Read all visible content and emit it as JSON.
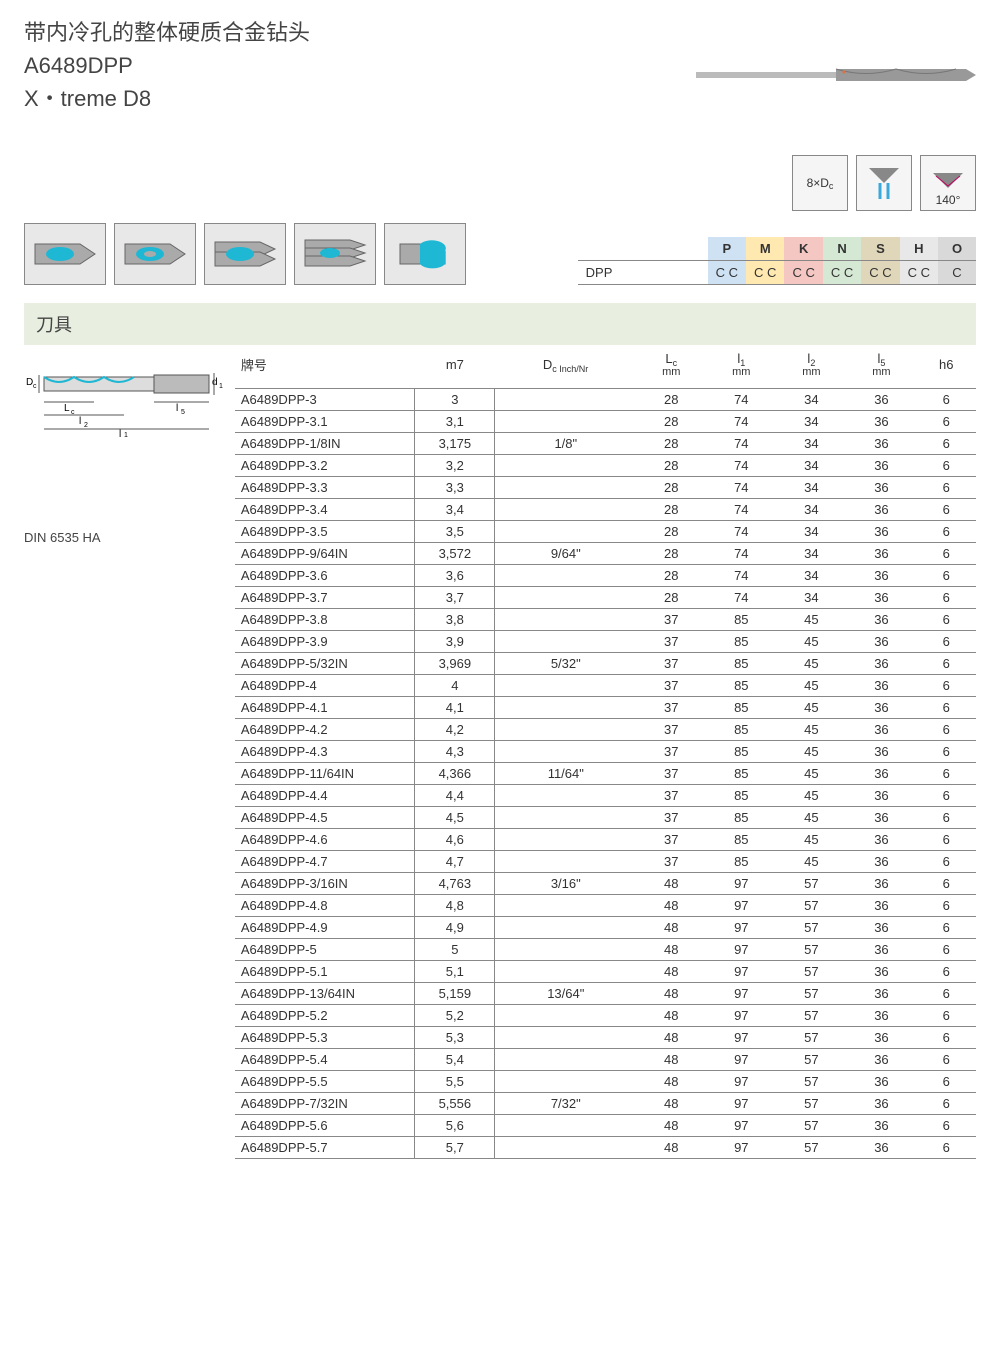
{
  "header": {
    "title_cn": "带内冷孔的整体硬质合金钻头",
    "model": "A6489DPP",
    "series": "X・treme D8"
  },
  "spec_icons": {
    "depth": "8×D",
    "depth_sub": "c",
    "angle": "140°"
  },
  "material_table": {
    "row_label": "DPP",
    "columns": [
      "P",
      "M",
      "K",
      "N",
      "S",
      "H",
      "O"
    ],
    "values": [
      "C C",
      "C C",
      "C C",
      "C C",
      "C C",
      "C C",
      "C"
    ],
    "colors": [
      "#cfe2f3",
      "#ffe9b0",
      "#f4c7c3",
      "#d5e8d4",
      "#e0d6b9",
      "#e8e8e8",
      "#d9d9d9"
    ]
  },
  "section_title": "刀具",
  "din_label": "DIN 6535 HA",
  "table": {
    "headers": {
      "part": "牌号",
      "m7": "m7",
      "dc_inch": "D",
      "dc_inch_sub": "c Inch/Nr",
      "lc": "L",
      "lc_sub": "c",
      "lc_unit": "mm",
      "l1": "l",
      "l1_sub": "1",
      "l1_unit": "mm",
      "l2": "l",
      "l2_sub": "2",
      "l2_unit": "mm",
      "l5": "l",
      "l5_sub": "5",
      "l5_unit": "mm",
      "h6": "h6"
    },
    "rows": [
      {
        "part": "A6489DPP-3",
        "m7": "3",
        "inch": "",
        "lc": "28",
        "l1": "74",
        "l2": "34",
        "l5": "36",
        "h6": "6"
      },
      {
        "part": "A6489DPP-3.1",
        "m7": "3,1",
        "inch": "",
        "lc": "28",
        "l1": "74",
        "l2": "34",
        "l5": "36",
        "h6": "6"
      },
      {
        "part": "A6489DPP-1/8IN",
        "m7": "3,175",
        "inch": "1/8\"",
        "lc": "28",
        "l1": "74",
        "l2": "34",
        "l5": "36",
        "h6": "6"
      },
      {
        "part": "A6489DPP-3.2",
        "m7": "3,2",
        "inch": "",
        "lc": "28",
        "l1": "74",
        "l2": "34",
        "l5": "36",
        "h6": "6"
      },
      {
        "part": "A6489DPP-3.3",
        "m7": "3,3",
        "inch": "",
        "lc": "28",
        "l1": "74",
        "l2": "34",
        "l5": "36",
        "h6": "6"
      },
      {
        "part": "A6489DPP-3.4",
        "m7": "3,4",
        "inch": "",
        "lc": "28",
        "l1": "74",
        "l2": "34",
        "l5": "36",
        "h6": "6"
      },
      {
        "part": "A6489DPP-3.5",
        "m7": "3,5",
        "inch": "",
        "lc": "28",
        "l1": "74",
        "l2": "34",
        "l5": "36",
        "h6": "6"
      },
      {
        "part": "A6489DPP-9/64IN",
        "m7": "3,572",
        "inch": "9/64\"",
        "lc": "28",
        "l1": "74",
        "l2": "34",
        "l5": "36",
        "h6": "6"
      },
      {
        "part": "A6489DPP-3.6",
        "m7": "3,6",
        "inch": "",
        "lc": "28",
        "l1": "74",
        "l2": "34",
        "l5": "36",
        "h6": "6"
      },
      {
        "part": "A6489DPP-3.7",
        "m7": "3,7",
        "inch": "",
        "lc": "28",
        "l1": "74",
        "l2": "34",
        "l5": "36",
        "h6": "6"
      },
      {
        "part": "A6489DPP-3.8",
        "m7": "3,8",
        "inch": "",
        "lc": "37",
        "l1": "85",
        "l2": "45",
        "l5": "36",
        "h6": "6"
      },
      {
        "part": "A6489DPP-3.9",
        "m7": "3,9",
        "inch": "",
        "lc": "37",
        "l1": "85",
        "l2": "45",
        "l5": "36",
        "h6": "6"
      },
      {
        "part": "A6489DPP-5/32IN",
        "m7": "3,969",
        "inch": "5/32\"",
        "lc": "37",
        "l1": "85",
        "l2": "45",
        "l5": "36",
        "h6": "6"
      },
      {
        "part": "A6489DPP-4",
        "m7": "4",
        "inch": "",
        "lc": "37",
        "l1": "85",
        "l2": "45",
        "l5": "36",
        "h6": "6"
      },
      {
        "part": "A6489DPP-4.1",
        "m7": "4,1",
        "inch": "",
        "lc": "37",
        "l1": "85",
        "l2": "45",
        "l5": "36",
        "h6": "6"
      },
      {
        "part": "A6489DPP-4.2",
        "m7": "4,2",
        "inch": "",
        "lc": "37",
        "l1": "85",
        "l2": "45",
        "l5": "36",
        "h6": "6"
      },
      {
        "part": "A6489DPP-4.3",
        "m7": "4,3",
        "inch": "",
        "lc": "37",
        "l1": "85",
        "l2": "45",
        "l5": "36",
        "h6": "6"
      },
      {
        "part": "A6489DPP-11/64IN",
        "m7": "4,366",
        "inch": "11/64\"",
        "lc": "37",
        "l1": "85",
        "l2": "45",
        "l5": "36",
        "h6": "6"
      },
      {
        "part": "A6489DPP-4.4",
        "m7": "4,4",
        "inch": "",
        "lc": "37",
        "l1": "85",
        "l2": "45",
        "l5": "36",
        "h6": "6"
      },
      {
        "part": "A6489DPP-4.5",
        "m7": "4,5",
        "inch": "",
        "lc": "37",
        "l1": "85",
        "l2": "45",
        "l5": "36",
        "h6": "6"
      },
      {
        "part": "A6489DPP-4.6",
        "m7": "4,6",
        "inch": "",
        "lc": "37",
        "l1": "85",
        "l2": "45",
        "l5": "36",
        "h6": "6"
      },
      {
        "part": "A6489DPP-4.7",
        "m7": "4,7",
        "inch": "",
        "lc": "37",
        "l1": "85",
        "l2": "45",
        "l5": "36",
        "h6": "6"
      },
      {
        "part": "A6489DPP-3/16IN",
        "m7": "4,763",
        "inch": "3/16\"",
        "lc": "48",
        "l1": "97",
        "l2": "57",
        "l5": "36",
        "h6": "6"
      },
      {
        "part": "A6489DPP-4.8",
        "m7": "4,8",
        "inch": "",
        "lc": "48",
        "l1": "97",
        "l2": "57",
        "l5": "36",
        "h6": "6"
      },
      {
        "part": "A6489DPP-4.9",
        "m7": "4,9",
        "inch": "",
        "lc": "48",
        "l1": "97",
        "l2": "57",
        "l5": "36",
        "h6": "6"
      },
      {
        "part": "A6489DPP-5",
        "m7": "5",
        "inch": "",
        "lc": "48",
        "l1": "97",
        "l2": "57",
        "l5": "36",
        "h6": "6"
      },
      {
        "part": "A6489DPP-5.1",
        "m7": "5,1",
        "inch": "",
        "lc": "48",
        "l1": "97",
        "l2": "57",
        "l5": "36",
        "h6": "6"
      },
      {
        "part": "A6489DPP-13/64IN",
        "m7": "5,159",
        "inch": "13/64\"",
        "lc": "48",
        "l1": "97",
        "l2": "57",
        "l5": "36",
        "h6": "6"
      },
      {
        "part": "A6489DPP-5.2",
        "m7": "5,2",
        "inch": "",
        "lc": "48",
        "l1": "97",
        "l2": "57",
        "l5": "36",
        "h6": "6"
      },
      {
        "part": "A6489DPP-5.3",
        "m7": "5,3",
        "inch": "",
        "lc": "48",
        "l1": "97",
        "l2": "57",
        "l5": "36",
        "h6": "6"
      },
      {
        "part": "A6489DPP-5.4",
        "m7": "5,4",
        "inch": "",
        "lc": "48",
        "l1": "97",
        "l2": "57",
        "l5": "36",
        "h6": "6"
      },
      {
        "part": "A6489DPP-5.5",
        "m7": "5,5",
        "inch": "",
        "lc": "48",
        "l1": "97",
        "l2": "57",
        "l5": "36",
        "h6": "6"
      },
      {
        "part": "A6489DPP-7/32IN",
        "m7": "5,556",
        "inch": "7/32\"",
        "lc": "48",
        "l1": "97",
        "l2": "57",
        "l5": "36",
        "h6": "6"
      },
      {
        "part": "A6489DPP-5.6",
        "m7": "5,6",
        "inch": "",
        "lc": "48",
        "l1": "97",
        "l2": "57",
        "l5": "36",
        "h6": "6"
      },
      {
        "part": "A6489DPP-5.7",
        "m7": "5,7",
        "inch": "",
        "lc": "48",
        "l1": "97",
        "l2": "57",
        "l5": "36",
        "h6": "6"
      }
    ]
  }
}
